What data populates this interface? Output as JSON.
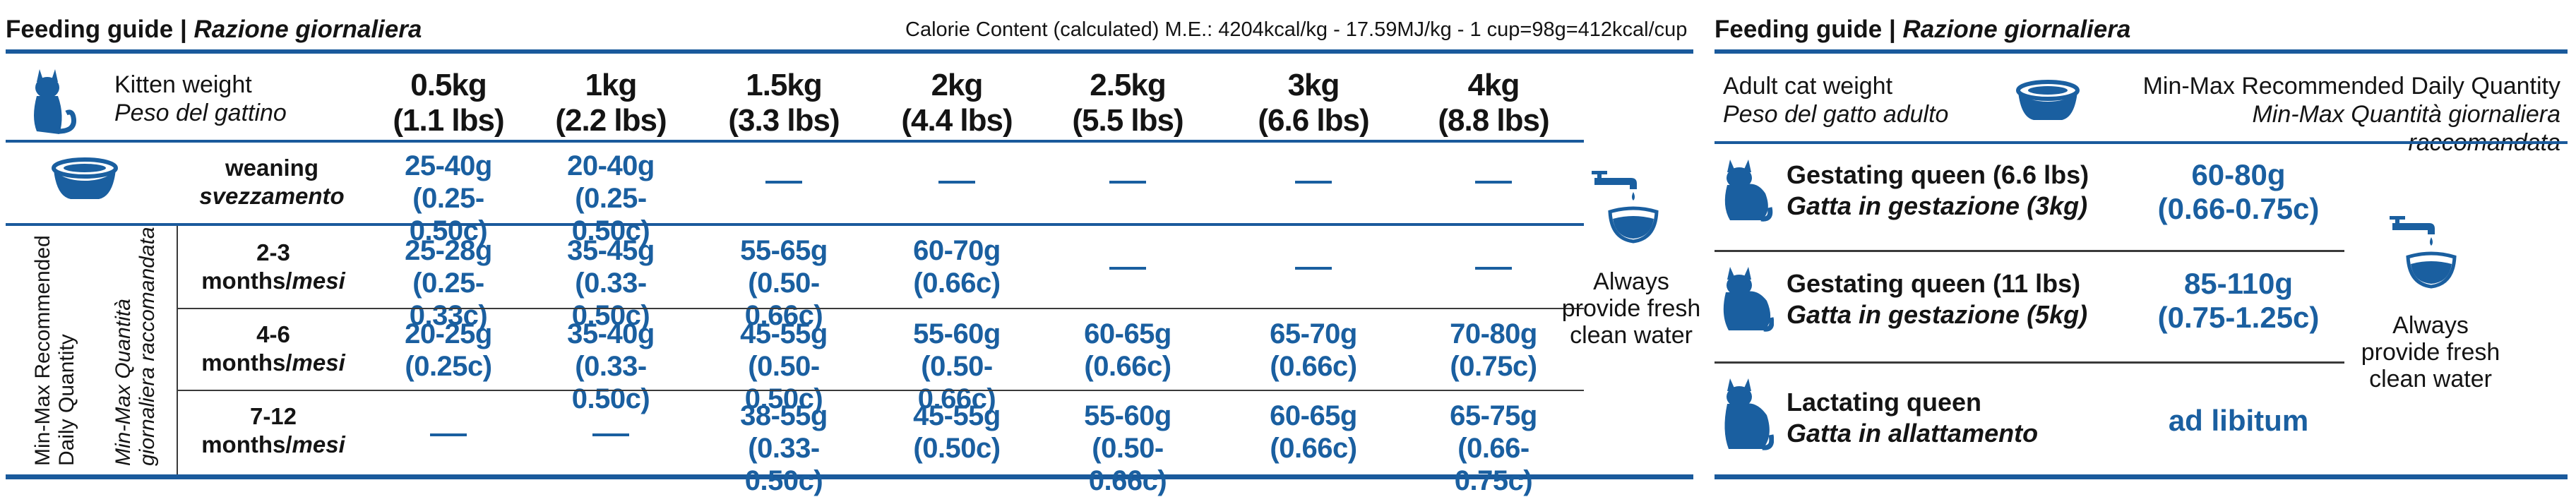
{
  "left": {
    "title_bold": "Feeding guide | ",
    "title_italic": "Razione giornaliera",
    "calorie_text": "Calorie Content (calculated) M.E.: 4204kcal/kg - 17.59MJ/kg - 1 cup=98g=412kcal/cup",
    "header_label_en": "Kitten weight",
    "header_label_it": "Peso del gattino",
    "weights": [
      {
        "kg": "0.5kg",
        "lbs": "(1.1 lbs)"
      },
      {
        "kg": "1kg",
        "lbs": "(2.2 lbs)"
      },
      {
        "kg": "1.5kg",
        "lbs": "(3.3 lbs)"
      },
      {
        "kg": "2kg",
        "lbs": "(4.4 lbs)"
      },
      {
        "kg": "2.5kg",
        "lbs": "(5.5 lbs)"
      },
      {
        "kg": "3kg",
        "lbs": "(6.6 lbs)"
      },
      {
        "kg": "4kg",
        "lbs": "(8.8 lbs)"
      }
    ],
    "vertical_label_en_1": "Min-Max Recommended",
    "vertical_label_en_2": "Daily Quantity",
    "vertical_label_it_1": "Min-Max Quantità",
    "vertical_label_it_2": "giornaliera raccomandata",
    "rows": [
      {
        "label_1": "weaning",
        "label_2": "svezzamento",
        "cells": [
          [
            "25-40g",
            "(0.25-0.50c)"
          ],
          [
            "20-40g",
            "(0.25-0.50c)"
          ],
          null,
          null,
          null,
          null,
          null
        ]
      },
      {
        "label_1": "2-3",
        "label_2a": "months/",
        "label_2b": "mesi",
        "cells": [
          [
            "25-28g",
            "(0.25-0.33c)"
          ],
          [
            "35-45g",
            "(0.33-0.50c)"
          ],
          [
            "55-65g",
            "(0.50-0.66c)"
          ],
          [
            "60-70g",
            "(0.66c)"
          ],
          null,
          null,
          null
        ]
      },
      {
        "label_1": "4-6",
        "label_2a": "months/",
        "label_2b": "mesi",
        "cells": [
          [
            "20-25g",
            "(0.25c)"
          ],
          [
            "35-40g",
            "(0.33-0.50c)"
          ],
          [
            "45-55g",
            "(0.50-0.50c)"
          ],
          [
            "55-60g",
            "(0.50-0.66c)"
          ],
          [
            "60-65g",
            "(0.66c)"
          ],
          [
            "65-70g",
            "(0.66c)"
          ],
          [
            "70-80g",
            "(0.75c)"
          ]
        ]
      },
      {
        "label_1": "7-12",
        "label_2a": "months/",
        "label_2b": "mesi",
        "cells": [
          null,
          null,
          [
            "38-55g",
            "(0.33-0.50c)"
          ],
          [
            "45-55g",
            "(0.50c)"
          ],
          [
            "55-60g",
            "(0.50-0.66c)"
          ],
          [
            "60-65g",
            "(0.66c)"
          ],
          [
            "65-75g",
            "(0.66-0.75c)"
          ]
        ]
      }
    ],
    "water_1": "Always",
    "water_2": "provide fresh",
    "water_3": "clean water"
  },
  "right": {
    "title_bold": "Feeding guide | ",
    "title_italic": "Razione giornaliera",
    "header_label_en": "Adult cat weight",
    "header_label_it": "Peso del gatto adulto",
    "qty_label_en": "Min-Max Recommended Daily Quantity",
    "qty_label_it": "Min-Max Quantità giornaliera raccomandata",
    "rows": [
      {
        "name_en": "Gestating queen (6.6 lbs)",
        "name_it": "Gatta in gestazione (3kg)",
        "value_1": "60-80g",
        "value_2": "(0.66-0.75c)"
      },
      {
        "name_en": "Gestating queen (11 lbs)",
        "name_it": "Gatta in gestazione (5kg)",
        "value_1": "85-110g",
        "value_2": "(0.75-1.25c)"
      },
      {
        "name_en": "Lactating queen",
        "name_it": "Gatta in allattamento",
        "value_1": "ad libitum",
        "value_2": ""
      }
    ],
    "water_1": "Always",
    "water_2": "provide fresh",
    "water_3": "clean water"
  },
  "icons": [
    "cat-icon",
    "food-bowl-icon",
    "water-tap-icon"
  ],
  "colors": {
    "accent": "#1a5fa0",
    "rule": "#1a5a9c"
  }
}
